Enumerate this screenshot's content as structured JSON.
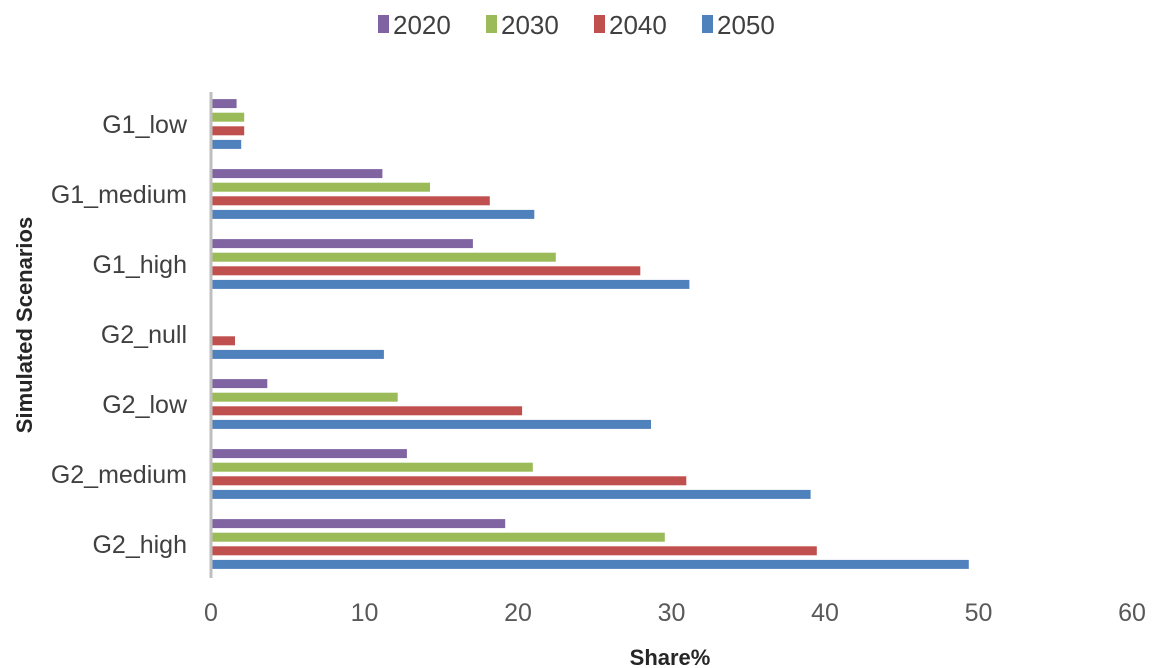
{
  "chart_data": {
    "type": "bar",
    "orientation": "horizontal",
    "xlabel": "Share%",
    "ylabel": "Simulated Scenarios",
    "xlim": [
      0,
      60
    ],
    "xticks": [
      0,
      10,
      20,
      30,
      40,
      50,
      60
    ],
    "grid": false,
    "legend_position": "top",
    "categories": [
      "G1_low",
      "G1_medium",
      "G1_high",
      "G2_null",
      "G2_low",
      "G2_medium",
      "G2_high"
    ],
    "series": [
      {
        "name": "2020",
        "color": "#8064a2",
        "values": [
          1.6,
          11.1,
          17.0,
          0,
          3.6,
          12.7,
          19.1
        ]
      },
      {
        "name": "2030",
        "color": "#9bbb59",
        "values": [
          2.1,
          14.2,
          22.4,
          0,
          12.1,
          20.9,
          29.5
        ]
      },
      {
        "name": "2040",
        "color": "#c0504d",
        "values": [
          2.1,
          18.1,
          27.9,
          1.5,
          20.2,
          30.9,
          39.4
        ]
      },
      {
        "name": "2050",
        "color": "#4f81bd",
        "values": [
          1.9,
          21.0,
          31.1,
          11.2,
          28.6,
          39.0,
          49.3
        ]
      }
    ]
  }
}
